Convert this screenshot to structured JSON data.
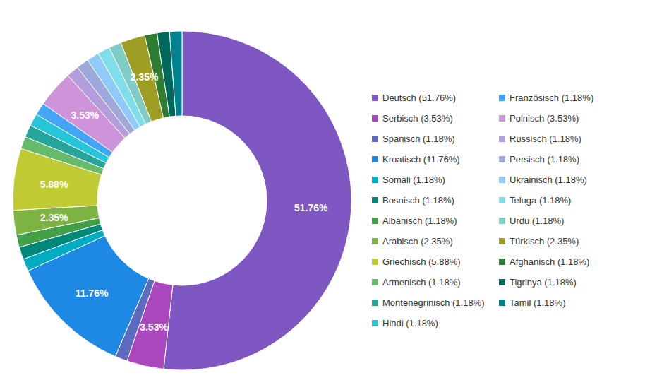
{
  "chart_data": {
    "type": "pie",
    "categories": [
      "Deutsch (51.76%)",
      "Serbisch (3.53%)",
      "Spanisch (1.18%)",
      "Kroatisch (11.76%)",
      "Somali (1.18%)",
      "Bosnisch (1.18%)",
      "Albanisch (1.18%)",
      "Arabisch (2.35%)",
      "Griechisch (5.88%)",
      "Armenisch (1.18%)",
      "Montenegrinisch (1.18%)",
      "Hindi (1.18%)",
      "Französisch (1.18%)",
      "Polnisch (3.53%)",
      "Russisch (1.18%)",
      "Persisch (1.18%)",
      "Ukrainisch (1.18%)",
      "Teluga (1.18%)",
      "Urdu (1.18%)",
      "Türkisch (2.35%)",
      "Afghanisch (1.18%)",
      "Tigrinya (1.18%)",
      "Tamil (1.18%)"
    ],
    "values": [
      51.76,
      3.53,
      1.18,
      11.76,
      1.18,
      1.18,
      1.18,
      2.35,
      5.88,
      1.18,
      1.18,
      1.18,
      1.18,
      3.53,
      1.18,
      1.18,
      1.18,
      1.18,
      1.18,
      2.35,
      1.18,
      1.18,
      1.18
    ],
    "value_labels": [
      "51.76%",
      "3.53%",
      null,
      "11.76%",
      null,
      null,
      null,
      "2.35%",
      "5.88%",
      null,
      null,
      null,
      null,
      "3.53%",
      null,
      null,
      null,
      null,
      null,
      "2.35%",
      null,
      null,
      null
    ],
    "colors": [
      "#7e57c2",
      "#ab47bc",
      "#5c6bc0",
      "#1e88e5",
      "#00acc1",
      "#00897b",
      "#43a047",
      "#7cb342",
      "#c0ca33",
      "#66bb6a",
      "#26a69a",
      "#26c6da",
      "#42a5f5",
      "#ce93d8",
      "#b39ddb",
      "#9fa8da",
      "#90caf9",
      "#80deea",
      "#80cbc4",
      "#9e9d24",
      "#2e7d32",
      "#00695c",
      "#00838f"
    ],
    "data_labels": true,
    "legend": "right"
  }
}
